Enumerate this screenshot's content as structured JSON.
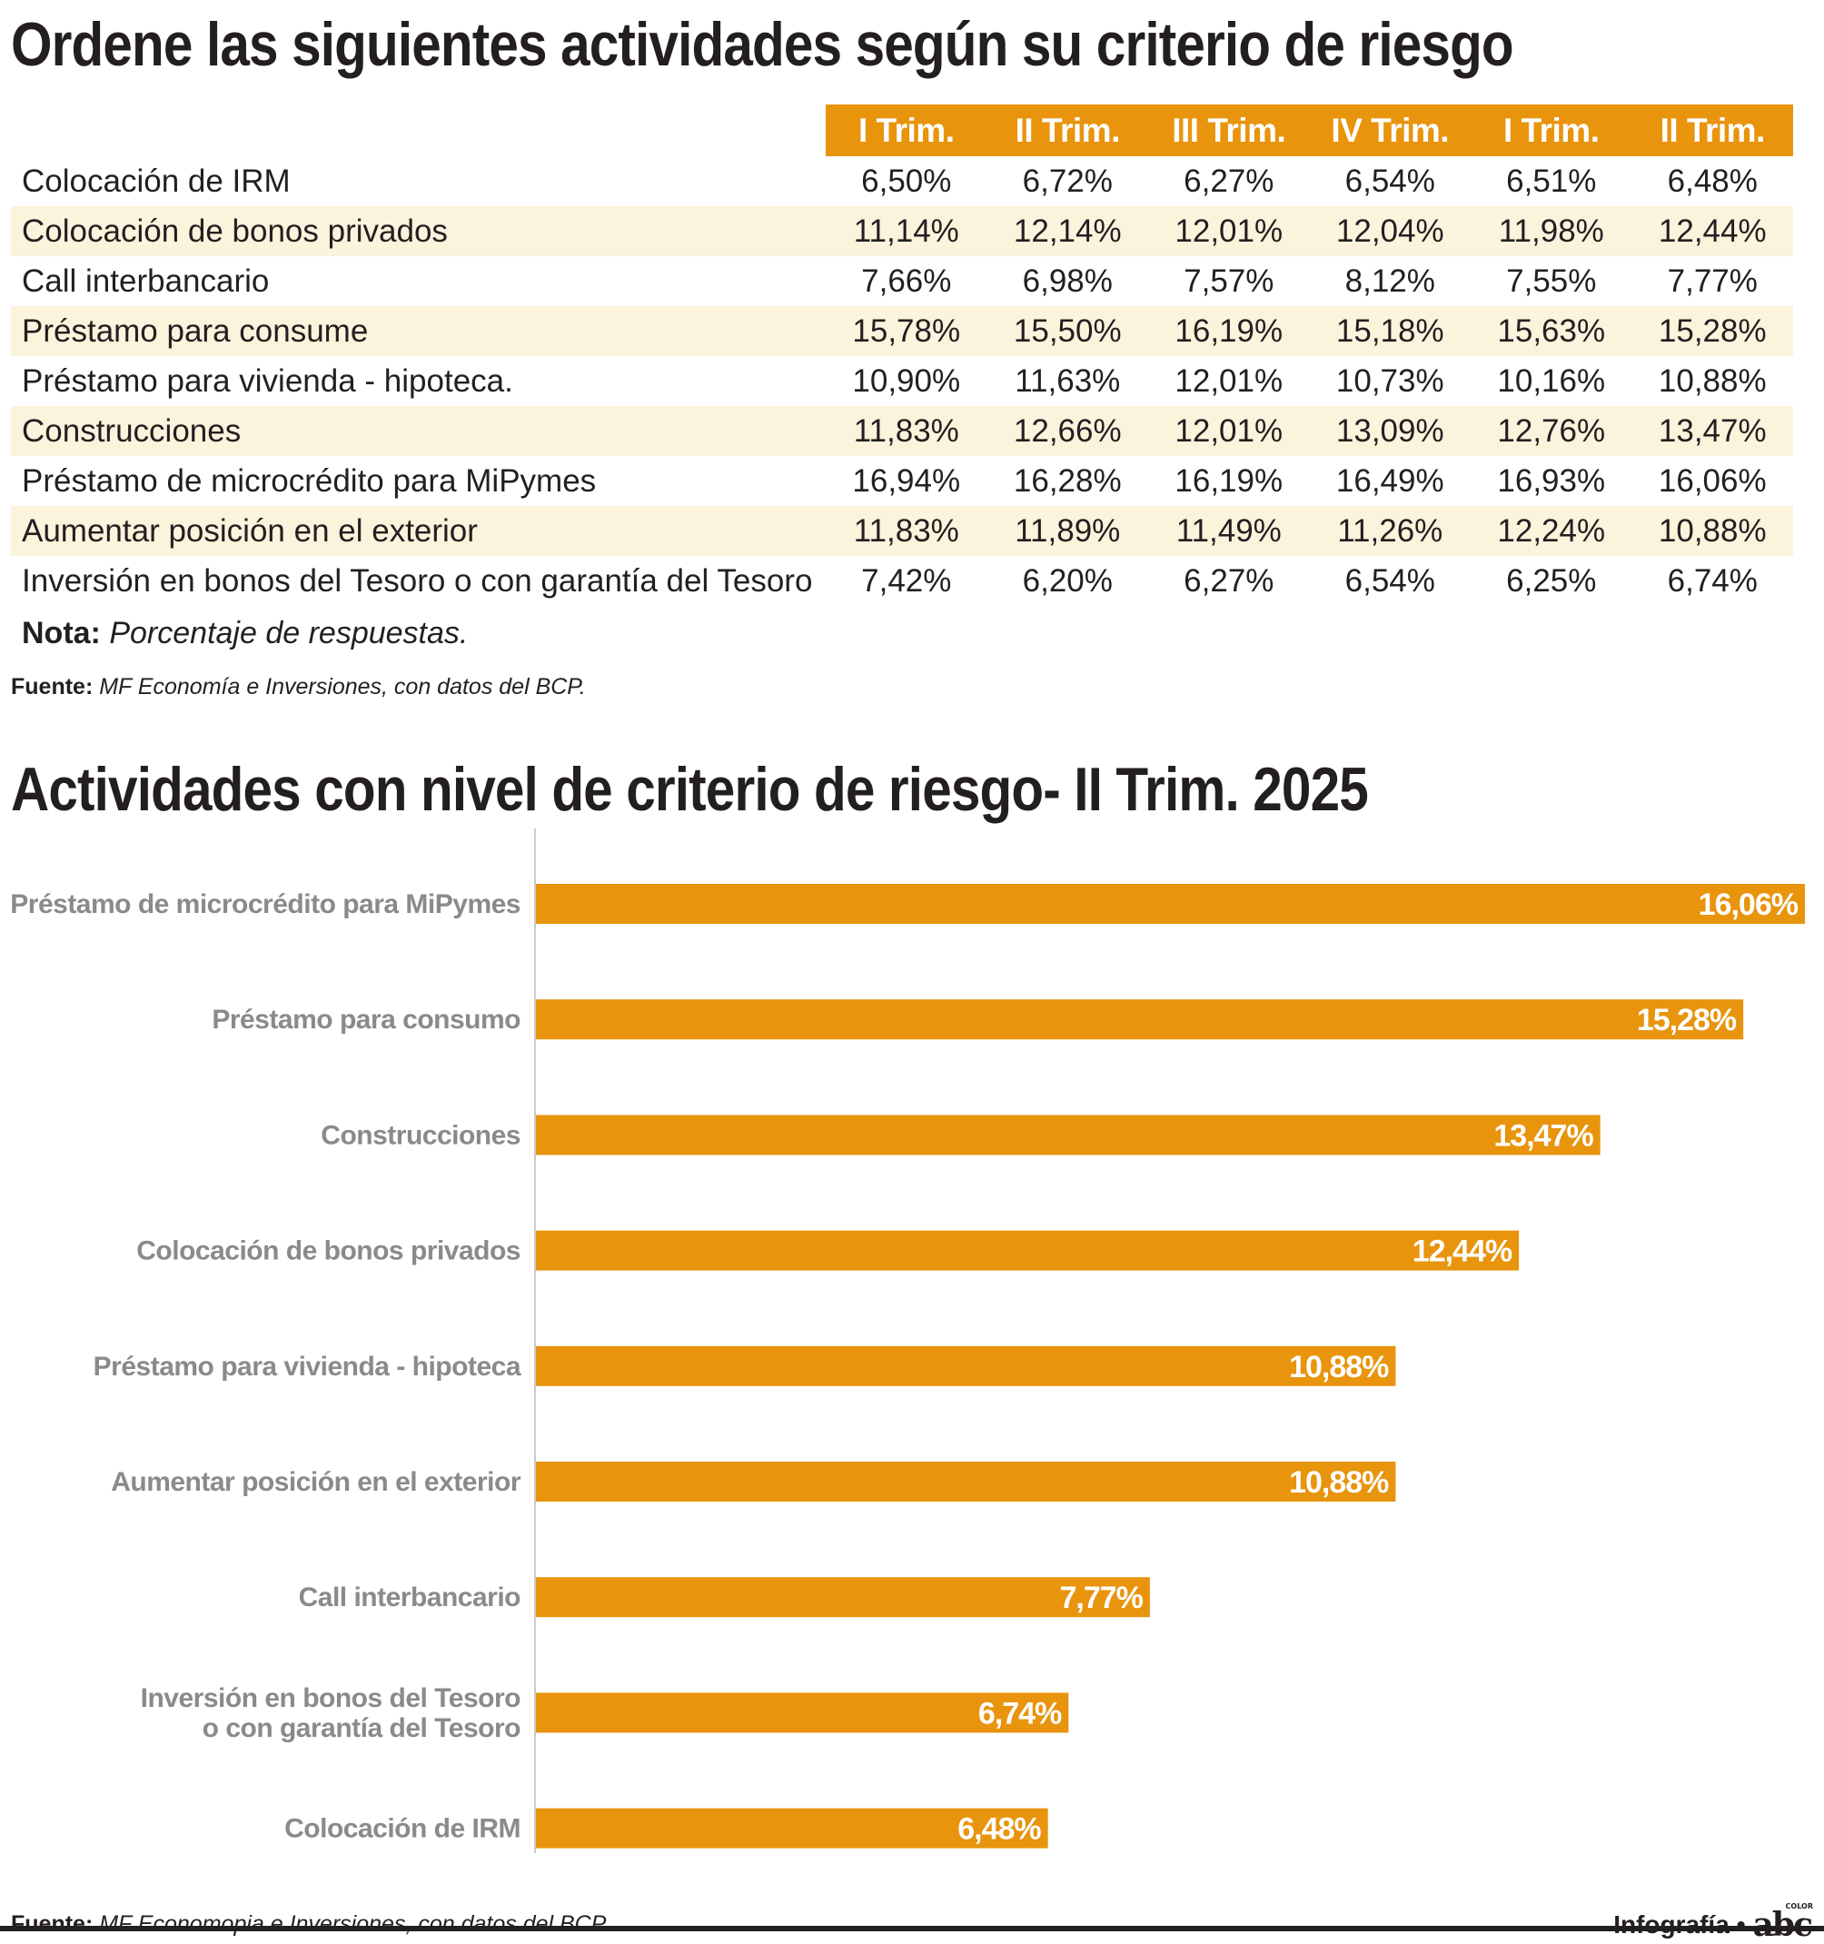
{
  "table_title": "Ordene las siguientes actividades según su criterio de riesgo",
  "table": {
    "headers": [
      "I Trim.",
      "II Trim.",
      "III Trim.",
      "IV Trim.",
      "I Trim.",
      "II Trim."
    ],
    "rows": [
      {
        "label": "Colocación de IRM",
        "values": [
          "6,50%",
          "6,72%",
          "6,27%",
          "6,54%",
          "6,51%",
          "6,48%"
        ]
      },
      {
        "label": "Colocación de bonos privados",
        "values": [
          "11,14%",
          "12,14%",
          "12,01%",
          "12,04%",
          "11,98%",
          "12,44%"
        ]
      },
      {
        "label": "Call interbancario",
        "values": [
          "7,66%",
          "6,98%",
          "7,57%",
          "8,12%",
          "7,55%",
          "7,77%"
        ]
      },
      {
        "label": "Préstamo para consume",
        "values": [
          "15,78%",
          "15,50%",
          "16,19%",
          "15,18%",
          "15,63%",
          "15,28%"
        ]
      },
      {
        "label": "Préstamo para vivienda - hipoteca.",
        "values": [
          "10,90%",
          "11,63%",
          "12,01%",
          "10,73%",
          "10,16%",
          "10,88%"
        ]
      },
      {
        "label": "Construcciones",
        "values": [
          "11,83%",
          "12,66%",
          "12,01%",
          "13,09%",
          "12,76%",
          "13,47%"
        ]
      },
      {
        "label": "Préstamo de microcrédito para MiPymes",
        "values": [
          "16,94%",
          "16,28%",
          "16,19%",
          "16,49%",
          "16,93%",
          "16,06%"
        ]
      },
      {
        "label": "Aumentar posición en el exterior",
        "values": [
          "11,83%",
          "11,89%",
          "11,49%",
          "11,26%",
          "12,24%",
          "10,88%"
        ]
      },
      {
        "label": "Inversión en bonos del Tesoro o con garantía del Tesoro",
        "values": [
          "7,42%",
          "6,20%",
          "6,27%",
          "6,54%",
          "6,25%",
          "6,74%"
        ]
      }
    ]
  },
  "note": {
    "label": "Nota:",
    "text": "Porcentaje de respuestas."
  },
  "source1": {
    "label": "Fuente:",
    "text": "MF Economía e Inversiones, con datos del BCP."
  },
  "chart_title": "Actividades con nivel de criterio de riesgo- II Trim. 2025",
  "chart_data": {
    "type": "bar",
    "orientation": "horizontal",
    "title": "Actividades con nivel de criterio de riesgo- II Trim. 2025",
    "categories": [
      [
        "Préstamo de microcrédito para MiPymes"
      ],
      [
        "Préstamo para consumo"
      ],
      [
        "Construcciones"
      ],
      [
        "Colocación de bonos privados"
      ],
      [
        "Préstamo para vivienda - hipoteca"
      ],
      [
        "Aumentar posición en el exterior"
      ],
      [
        "Call interbancario"
      ],
      [
        "Inversión en bonos del Tesoro ",
        "o con garantía del Tesoro"
      ],
      [
        "Colocación de IRM"
      ]
    ],
    "values": [
      16.06,
      15.28,
      13.47,
      12.44,
      10.88,
      10.88,
      7.77,
      6.74,
      6.48
    ],
    "labels": [
      "16,06%",
      "15,28%",
      "13,47%",
      "12,44%",
      "10,88%",
      "10,88%",
      "7,77%",
      "6,74%",
      "6,48%"
    ],
    "xlim": [
      0,
      16.06
    ],
    "grid": false,
    "legend": "none",
    "colors": {
      "bar": "#e8940d",
      "bar_label": "#ffffff",
      "category_label": "#8a8a8a",
      "axis": "#cccccc"
    }
  },
  "source2": {
    "label": "Fuente:",
    "text": "MF Economopia e Inversiones, con datos del BCP."
  },
  "credit": {
    "text": "Infografía",
    "separator": "•",
    "logo": "abc",
    "logo_sub": "COLOR"
  },
  "colors": {
    "accent": "#e8940d",
    "row_stripe": "#fcf3dc",
    "text": "#231f20"
  }
}
